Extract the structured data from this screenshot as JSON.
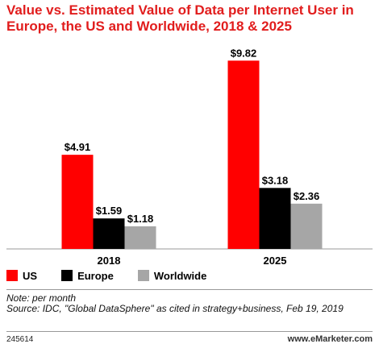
{
  "chart_data": {
    "type": "bar",
    "title": "Value vs. Estimated Value of Data per Internet User in Europe, the US and Worldwide, 2018 & 2025",
    "categories": [
      "2018",
      "2025"
    ],
    "series": [
      {
        "name": "US",
        "color": "#ff0000",
        "values": [
          4.91,
          9.82
        ],
        "labels": [
          "$4.91",
          "$9.82"
        ]
      },
      {
        "name": "Europe",
        "color": "#000000",
        "values": [
          1.59,
          3.18
        ],
        "labels": [
          "$1.59",
          "$3.18"
        ]
      },
      {
        "name": "Worldwide",
        "color": "#a6a6a6",
        "values": [
          1.18,
          2.36
        ],
        "labels": [
          "$1.18",
          "$2.36"
        ]
      }
    ],
    "ylim": [
      0,
      10
    ],
    "grid": false,
    "legend": "bottom-left"
  },
  "note": "Note: per month",
  "source": "Source: IDC, \"Global DataSphere\" as cited in strategy+business, Feb 19, 2019",
  "chart_id": "245614",
  "brand": "www.eMarketer.com"
}
